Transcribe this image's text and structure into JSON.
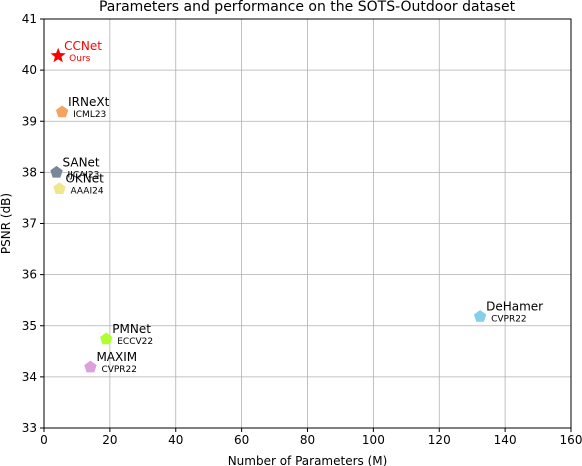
{
  "chart_data": {
    "type": "scatter",
    "title": "Parameters and performance on the SOTS-Outdoor dataset",
    "xlabel": "Number of Parameters (M)",
    "ylabel": "PSNR (dB)",
    "xlim": [
      0,
      160
    ],
    "ylim": [
      33,
      41
    ],
    "xticks": [
      "0",
      "20",
      "40",
      "60",
      "80",
      "100",
      "120",
      "140",
      "160"
    ],
    "yticks": [
      "33",
      "34",
      "35",
      "36",
      "37",
      "38",
      "39",
      "40",
      "41"
    ],
    "grid": true,
    "points": [
      {
        "name": "CCNet",
        "venue": "Ours",
        "x": 4.3,
        "y": 40.28,
        "color": "#ff0000",
        "marker": "star",
        "label_color": "#ff0000"
      },
      {
        "name": "IRNeXt",
        "venue": "ICML23",
        "x": 5.5,
        "y": 39.18,
        "color": "#f4a460",
        "marker": "pentagon",
        "label_color": "#000000"
      },
      {
        "name": "SANet",
        "venue": "IJCAI23",
        "x": 3.8,
        "y": 38.0,
        "color": "#778899",
        "marker": "pentagon",
        "label_color": "#000000"
      },
      {
        "name": "OKNet",
        "venue": "AAAI24",
        "x": 4.7,
        "y": 37.68,
        "color": "#f0e68c",
        "marker": "pentagon",
        "label_color": "#000000"
      },
      {
        "name": "DeHamer",
        "venue": "CVPR22",
        "x": 132.4,
        "y": 35.18,
        "color": "#87ceeb",
        "marker": "pentagon",
        "label_color": "#000000"
      },
      {
        "name": "PMNet",
        "venue": "ECCV22",
        "x": 18.9,
        "y": 34.74,
        "color": "#adff2f",
        "marker": "pentagon",
        "label_color": "#000000"
      },
      {
        "name": "MAXIM",
        "venue": "CVPR22",
        "x": 14.1,
        "y": 34.19,
        "color": "#dda0dd",
        "marker": "pentagon",
        "label_color": "#000000"
      }
    ]
  }
}
